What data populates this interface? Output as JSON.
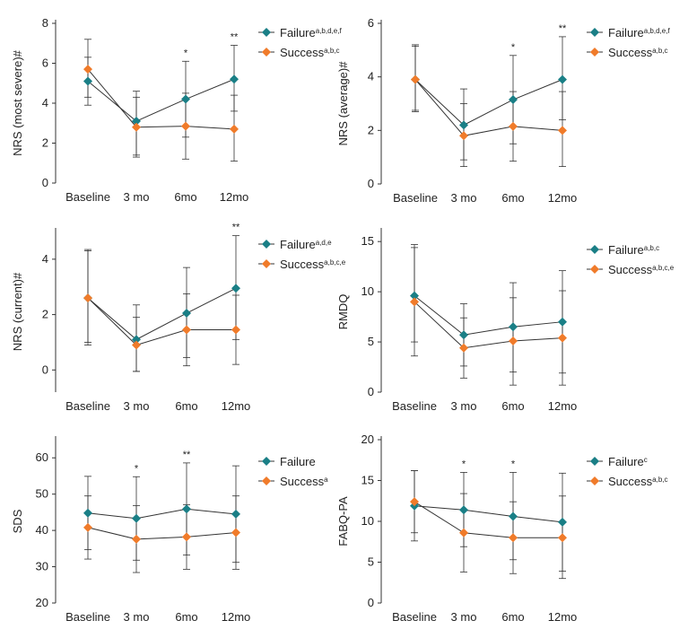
{
  "colors": {
    "failure": "#1a7f86",
    "success": "#f07b2a",
    "line": "#333333",
    "errbar": "#333333"
  },
  "chart_data": [
    {
      "type": "line",
      "ylabel": "NRS (most severe)#",
      "ylim": [
        0,
        8
      ],
      "yticks": [
        0,
        2,
        4,
        6,
        8
      ],
      "categories": [
        "Baseline",
        "3 mo",
        "6mo",
        "12mo"
      ],
      "significance": [
        "",
        "",
        "*",
        "**"
      ],
      "series": [
        {
          "name": "Failure",
          "sup": "a,b,d,e,f",
          "values": [
            5.1,
            3.1,
            4.2,
            5.2
          ],
          "err_low": [
            3.9,
            1.4,
            2.3,
            3.6
          ],
          "err_high": [
            6.3,
            4.3,
            6.1,
            6.9
          ]
        },
        {
          "name": "Success",
          "sup": "a,b,c",
          "values": [
            5.7,
            2.8,
            2.85,
            2.7
          ],
          "err_low": [
            4.3,
            1.3,
            1.2,
            1.1
          ],
          "err_high": [
            7.2,
            4.6,
            4.5,
            4.4
          ]
        }
      ]
    },
    {
      "type": "line",
      "ylabel": "NRS (average)#",
      "ylim": [
        0,
        6
      ],
      "yticks": [
        0,
        2,
        4,
        6
      ],
      "categories": [
        "Baseline",
        "3 mo",
        "6mo",
        "12mo"
      ],
      "significance": [
        "",
        "",
        "*",
        "**"
      ],
      "series": [
        {
          "name": "Failure",
          "sup": "a,b,d,e,f",
          "values": [
            3.9,
            2.2,
            3.15,
            3.9
          ],
          "err_low": [
            2.7,
            0.9,
            1.5,
            2.4
          ],
          "err_high": [
            5.2,
            3.55,
            4.8,
            5.5
          ]
        },
        {
          "name": "Success",
          "sup": "a,b,c",
          "values": [
            3.9,
            1.8,
            2.15,
            2.0
          ],
          "err_low": [
            2.75,
            0.65,
            0.85,
            0.65
          ],
          "err_high": [
            5.15,
            3.0,
            3.45,
            3.45
          ]
        }
      ]
    },
    {
      "type": "line",
      "ylabel": "NRS (current)#",
      "ylim": [
        -0.8,
        5
      ],
      "yticks": [
        0,
        2,
        4
      ],
      "categories": [
        "Baseline",
        "3 mo",
        "6mo",
        "12mo"
      ],
      "significance": [
        "",
        "",
        "",
        "**"
      ],
      "series": [
        {
          "name": "Failure",
          "sup": "a,d,e",
          "values": [
            2.6,
            1.1,
            2.05,
            2.95
          ],
          "err_low": [
            1.0,
            -0.05,
            0.45,
            1.1
          ],
          "err_high": [
            4.3,
            2.35,
            3.7,
            4.85
          ]
        },
        {
          "name": "Success",
          "sup": "a,b,c,e",
          "values": [
            2.6,
            0.9,
            1.45,
            1.45
          ],
          "err_low": [
            0.9,
            -0.05,
            0.15,
            0.2
          ],
          "err_high": [
            4.35,
            1.9,
            2.75,
            2.7
          ]
        }
      ]
    },
    {
      "type": "line",
      "ylabel": "RMDQ",
      "ylim": [
        0,
        16
      ],
      "yticks": [
        0,
        5,
        10,
        15
      ],
      "categories": [
        "Baseline",
        "3 mo",
        "6mo",
        "12mo"
      ],
      "significance": [
        "",
        "",
        "",
        ""
      ],
      "series": [
        {
          "name": "Failure",
          "sup": "a,b,c",
          "values": [
            9.6,
            5.7,
            6.5,
            7.0
          ],
          "err_low": [
            5.0,
            2.6,
            2.0,
            1.9
          ],
          "err_high": [
            14.7,
            8.8,
            10.9,
            12.1
          ]
        },
        {
          "name": "Success",
          "sup": "a,b,c,e",
          "values": [
            9.0,
            4.4,
            5.1,
            5.4
          ],
          "err_low": [
            3.6,
            1.4,
            0.7,
            0.7
          ],
          "err_high": [
            14.4,
            7.4,
            9.4,
            10.1
          ]
        }
      ]
    },
    {
      "type": "line",
      "ylabel": "SDS",
      "ylim": [
        20,
        65
      ],
      "yticks": [
        20,
        30,
        40,
        50,
        60
      ],
      "categories": [
        "Baseline",
        "3 mo",
        "6mo",
        "12mo"
      ],
      "significance": [
        "",
        "*",
        "**",
        ""
      ],
      "series": [
        {
          "name": "Failure",
          "sup": "",
          "values": [
            44.8,
            43.3,
            45.9,
            44.5
          ],
          "err_low": [
            34.7,
            31.8,
            33.2,
            31.2
          ],
          "err_high": [
            54.9,
            54.8,
            58.6,
            57.8
          ]
        },
        {
          "name": "Success",
          "sup": "a",
          "values": [
            40.8,
            37.6,
            38.2,
            39.4
          ],
          "err_low": [
            32.1,
            28.4,
            29.3,
            29.3
          ],
          "err_high": [
            49.5,
            46.8,
            47.1,
            49.5
          ]
        }
      ]
    },
    {
      "type": "line",
      "ylabel": "FABQ-PA",
      "ylim": [
        0,
        20
      ],
      "yticks": [
        0,
        5,
        10,
        15,
        20
      ],
      "categories": [
        "Baseline",
        "3 mo",
        "6mo",
        "12mo"
      ],
      "significance": [
        "",
        "*",
        "*",
        ""
      ],
      "series": [
        {
          "name": "Failure",
          "sup": "c",
          "values": [
            11.9,
            11.4,
            10.6,
            9.9
          ],
          "err_low": [
            7.6,
            6.9,
            5.3,
            3.9
          ],
          "err_high": [
            16.2,
            16.0,
            16.0,
            15.9
          ]
        },
        {
          "name": "Success",
          "sup": "a,b,c",
          "values": [
            12.4,
            8.6,
            8.0,
            8.0
          ],
          "err_low": [
            8.6,
            3.8,
            3.6,
            3.0
          ],
          "err_high": [
            16.2,
            13.4,
            12.4,
            13.1
          ]
        }
      ]
    }
  ]
}
